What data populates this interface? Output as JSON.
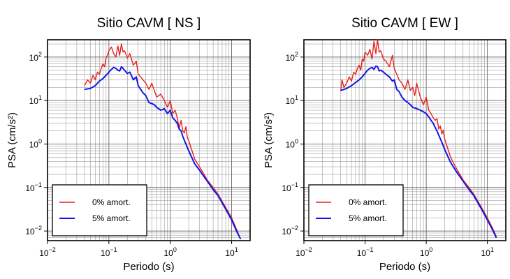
{
  "chart_data": [
    {
      "type": "line",
      "title": "Sitio CAVM [ NS ]",
      "xlabel": "Periodo (s)",
      "ylabel": "PSA (cm/s²)",
      "x_scale": "log",
      "y_scale": "log",
      "xlim": [
        0.01,
        20
      ],
      "ylim": [
        0.006,
        250
      ],
      "grid": true,
      "legend_position": "bottom-left",
      "x_ticks": [
        {
          "value": 0.01,
          "base": "10",
          "exp": "−2"
        },
        {
          "value": 0.1,
          "base": "10",
          "exp": "−1"
        },
        {
          "value": 1,
          "base": "10",
          "exp": "0"
        },
        {
          "value": 10,
          "base": "10",
          "exp": "1"
        }
      ],
      "y_ticks": [
        {
          "value": 0.01,
          "base": "10",
          "exp": "−2"
        },
        {
          "value": 0.1,
          "base": "10",
          "exp": "−1"
        },
        {
          "value": 1,
          "base": "10",
          "exp": "0"
        },
        {
          "value": 10,
          "base": "10",
          "exp": "1"
        },
        {
          "value": 100,
          "base": "10",
          "exp": "2"
        }
      ],
      "series": [
        {
          "name": "0% amort.",
          "color": "#e8201e",
          "x": [
            0.04,
            0.045,
            0.05,
            0.055,
            0.06,
            0.065,
            0.07,
            0.075,
            0.08,
            0.085,
            0.09,
            0.095,
            0.1,
            0.11,
            0.12,
            0.13,
            0.14,
            0.15,
            0.16,
            0.17,
            0.18,
            0.2,
            0.22,
            0.25,
            0.28,
            0.3,
            0.33,
            0.36,
            0.4,
            0.45,
            0.5,
            0.55,
            0.6,
            0.7,
            0.8,
            0.9,
            1.0,
            1.1,
            1.2,
            1.3,
            1.4,
            1.5,
            1.6,
            1.7,
            1.8,
            1.9,
            2.0,
            2.5,
            3,
            4,
            5,
            6,
            8,
            10,
            12,
            14
          ],
          "y": [
            22,
            30,
            25,
            38,
            30,
            45,
            40,
            55,
            70,
            60,
            95,
            110,
            140,
            170,
            120,
            100,
            180,
            110,
            200,
            130,
            140,
            95,
            120,
            65,
            80,
            40,
            35,
            30,
            25,
            18,
            25,
            17,
            12,
            14,
            10,
            7,
            10,
            5,
            6,
            4,
            2.3,
            3.5,
            2.0,
            1.8,
            2.5,
            1.4,
            1.2,
            0.45,
            0.3,
            0.15,
            0.1,
            0.07,
            0.035,
            0.02,
            0.011,
            0.0065
          ]
        },
        {
          "name": "5% amort.",
          "color": "#1414e6",
          "x": [
            0.04,
            0.05,
            0.06,
            0.07,
            0.08,
            0.09,
            0.1,
            0.11,
            0.12,
            0.13,
            0.14,
            0.15,
            0.16,
            0.17,
            0.18,
            0.2,
            0.22,
            0.25,
            0.28,
            0.3,
            0.33,
            0.36,
            0.4,
            0.45,
            0.5,
            0.55,
            0.6,
            0.7,
            0.8,
            0.9,
            1.0,
            1.1,
            1.2,
            1.3,
            1.4,
            1.5,
            1.6,
            1.8,
            2.0,
            2.5,
            3,
            4,
            5,
            6,
            8,
            10,
            12,
            14
          ],
          "y": [
            18,
            19,
            22,
            28,
            32,
            38,
            45,
            52,
            58,
            55,
            50,
            48,
            60,
            55,
            50,
            42,
            45,
            30,
            35,
            22,
            18,
            15,
            13,
            9,
            8.5,
            8,
            7,
            6,
            6.5,
            5,
            6,
            4,
            3.5,
            3,
            2.2,
            2.0,
            1.5,
            1.0,
            0.7,
            0.35,
            0.25,
            0.14,
            0.09,
            0.065,
            0.032,
            0.018,
            0.01,
            0.0065
          ]
        }
      ]
    },
    {
      "type": "line",
      "title": "Sitio CAVM [ EW ]",
      "xlabel": "Periodo (s)",
      "ylabel": "PSA (cm/s²)",
      "x_scale": "log",
      "y_scale": "log",
      "xlim": [
        0.01,
        20
      ],
      "ylim": [
        0.006,
        250
      ],
      "grid": true,
      "legend_position": "bottom-left",
      "x_ticks": [
        {
          "value": 0.01,
          "base": "10",
          "exp": "−2"
        },
        {
          "value": 0.1,
          "base": "10",
          "exp": "−1"
        },
        {
          "value": 1,
          "base": "10",
          "exp": "0"
        },
        {
          "value": 10,
          "base": "10",
          "exp": "1"
        }
      ],
      "y_ticks": [
        {
          "value": 0.01,
          "base": "10",
          "exp": "−2"
        },
        {
          "value": 0.1,
          "base": "10",
          "exp": "−1"
        },
        {
          "value": 1,
          "base": "10",
          "exp": "0"
        },
        {
          "value": 10,
          "base": "10",
          "exp": "1"
        },
        {
          "value": 100,
          "base": "10",
          "exp": "2"
        }
      ],
      "series": [
        {
          "name": "0% amort.",
          "color": "#e8201e",
          "x": [
            0.04,
            0.042,
            0.045,
            0.05,
            0.055,
            0.06,
            0.065,
            0.07,
            0.075,
            0.08,
            0.085,
            0.09,
            0.095,
            0.1,
            0.11,
            0.12,
            0.13,
            0.14,
            0.15,
            0.16,
            0.17,
            0.18,
            0.2,
            0.22,
            0.25,
            0.28,
            0.3,
            0.33,
            0.36,
            0.4,
            0.45,
            0.5,
            0.55,
            0.6,
            0.65,
            0.7,
            0.8,
            0.9,
            1.0,
            1.1,
            1.2,
            1.3,
            1.4,
            1.5,
            1.6,
            1.7,
            1.8,
            1.9,
            2.0,
            2.5,
            3,
            4,
            5,
            6,
            8,
            10,
            12,
            14
          ],
          "y": [
            17,
            30,
            20,
            25,
            35,
            28,
            45,
            40,
            55,
            65,
            50,
            90,
            80,
            130,
            110,
            150,
            90,
            230,
            120,
            250,
            130,
            140,
            90,
            80,
            60,
            110,
            55,
            40,
            30,
            25,
            18,
            30,
            17,
            20,
            13,
            25,
            12,
            8,
            12,
            6,
            5,
            4,
            3.5,
            3.8,
            2.2,
            2.6,
            1.7,
            2.1,
            1.3,
            0.5,
            0.3,
            0.15,
            0.1,
            0.07,
            0.035,
            0.02,
            0.012,
            0.0075
          ]
        },
        {
          "name": "5% amort.",
          "color": "#1414e6",
          "x": [
            0.04,
            0.05,
            0.06,
            0.07,
            0.08,
            0.09,
            0.1,
            0.11,
            0.12,
            0.13,
            0.14,
            0.15,
            0.16,
            0.17,
            0.18,
            0.2,
            0.22,
            0.25,
            0.28,
            0.3,
            0.33,
            0.36,
            0.4,
            0.45,
            0.5,
            0.55,
            0.6,
            0.7,
            0.8,
            0.9,
            1.0,
            1.1,
            1.2,
            1.3,
            1.4,
            1.5,
            1.6,
            1.8,
            2.0,
            2.5,
            3,
            4,
            5,
            6,
            8,
            10,
            12,
            14
          ],
          "y": [
            17,
            19,
            22,
            26,
            30,
            35,
            42,
            50,
            55,
            58,
            52,
            62,
            60,
            48,
            50,
            45,
            40,
            35,
            28,
            30,
            18,
            16,
            12,
            10,
            9,
            8,
            7,
            6.5,
            6,
            5.5,
            5,
            4.2,
            3.5,
            3,
            2.4,
            2.0,
            1.6,
            1.1,
            0.75,
            0.38,
            0.25,
            0.14,
            0.09,
            0.065,
            0.032,
            0.018,
            0.011,
            0.007
          ]
        }
      ]
    }
  ]
}
